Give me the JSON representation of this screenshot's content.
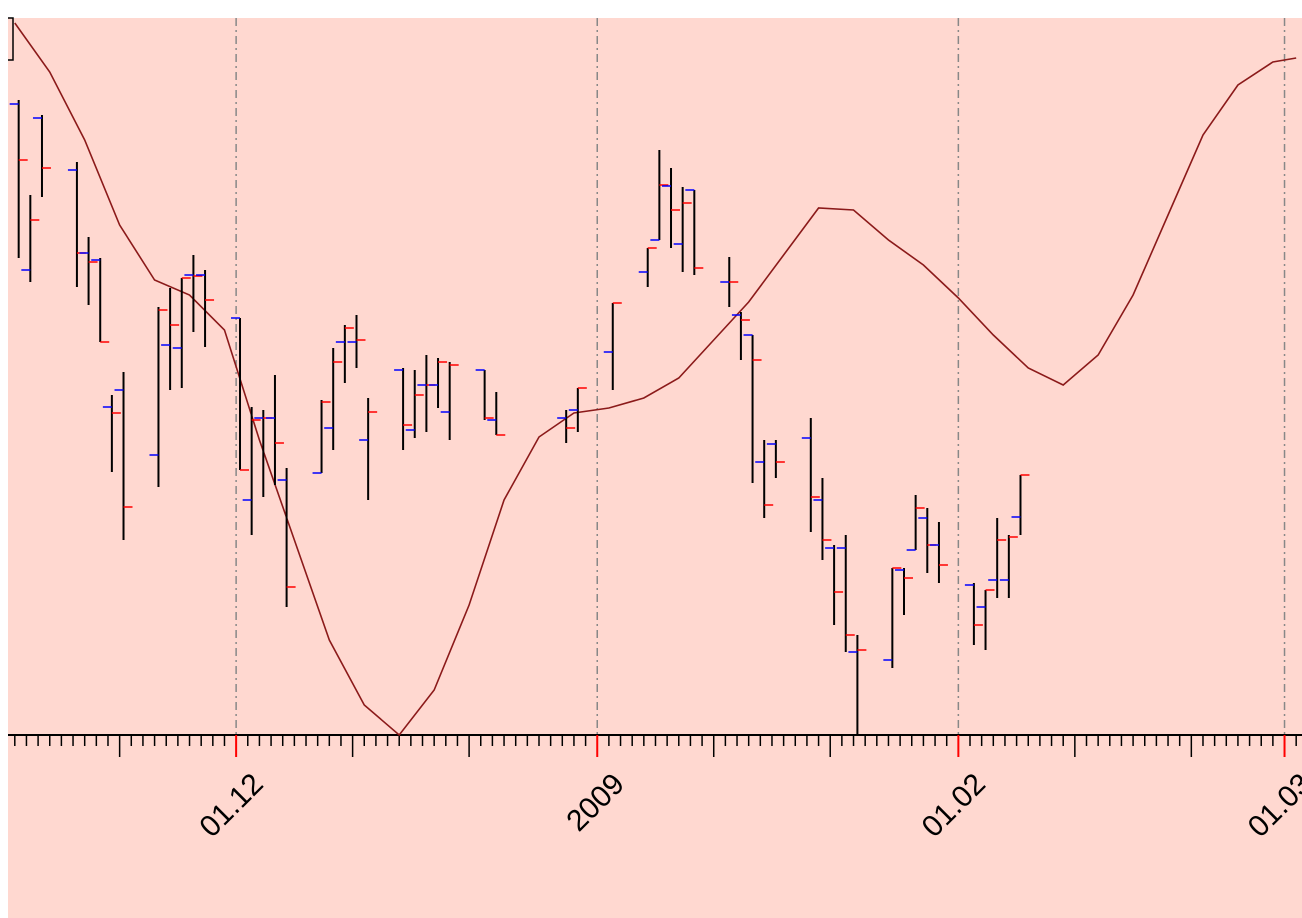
{
  "chart_data": {
    "type": "ohlc",
    "x": [
      "2008-11-12",
      "2008-11-13",
      "2008-11-14",
      "2008-11-17",
      "2008-11-18",
      "2008-11-19",
      "2008-11-20",
      "2008-11-21",
      "2008-11-24",
      "2008-11-25",
      "2008-11-26",
      "2008-11-27",
      "2008-11-28",
      "2008-12-01",
      "2008-12-02",
      "2008-12-03",
      "2008-12-04",
      "2008-12-05",
      "2008-12-08",
      "2008-12-09",
      "2008-12-10",
      "2008-12-11",
      "2008-12-12",
      "2008-12-15",
      "2008-12-16",
      "2008-12-17",
      "2008-12-18",
      "2008-12-19",
      "2008-12-22",
      "2008-12-23",
      "2008-12-29",
      "2008-12-30",
      "2009-01-02",
      "2009-01-05",
      "2009-01-06",
      "2009-01-07",
      "2009-01-08",
      "2009-01-09",
      "2009-01-12",
      "2009-01-13",
      "2009-01-14",
      "2009-01-15",
      "2009-01-16",
      "2009-01-19",
      "2009-01-20",
      "2009-01-21",
      "2009-01-22",
      "2009-01-23",
      "2009-01-26",
      "2009-01-27",
      "2009-01-28",
      "2009-01-29",
      "2009-01-30",
      "2009-02-02",
      "2009-02-03",
      "2009-02-04",
      "2009-02-05",
      "2009-02-06"
    ],
    "open": [
      631,
      465,
      617,
      565,
      482,
      475,
      328,
      345,
      280,
      390,
      387,
      460,
      460,
      417,
      235,
      317,
      317,
      255,
      262,
      307,
      393,
      393,
      295,
      365,
      305,
      350,
      350,
      323,
      365,
      315,
      317,
      325,
      383,
      463,
      495,
      549,
      491,
      545,
      453,
      420,
      400,
      273,
      291,
      297,
      235,
      187,
      187,
      83,
      75,
      165,
      185,
      217,
      190,
      150,
      128,
      155,
      155,
      218
    ],
    "high": [
      635,
      540,
      620,
      573,
      498,
      477,
      340,
      363,
      428,
      447,
      457,
      480,
      465,
      417,
      328,
      325,
      360,
      267,
      335,
      387,
      410,
      420,
      337,
      367,
      365,
      380,
      377,
      373,
      365,
      343,
      325,
      347,
      432,
      487,
      585,
      567,
      548,
      545,
      478,
      423,
      400,
      295,
      295,
      317,
      257,
      190,
      200,
      100,
      167,
      167,
      240,
      227,
      213,
      152,
      145,
      217,
      200,
      260
    ],
    "low": [
      477,
      453,
      538,
      448,
      430,
      393,
      263,
      195,
      248,
      345,
      347,
      403,
      388,
      265,
      200,
      238,
      250,
      128,
      262,
      285,
      352,
      367,
      235,
      285,
      297,
      303,
      327,
      295,
      315,
      300,
      292,
      303,
      345,
      448,
      495,
      487,
      463,
      460,
      428,
      375,
      252,
      217,
      257,
      203,
      175,
      110,
      83,
      0,
      67,
      120,
      185,
      162,
      152,
      90,
      85,
      137,
      137,
      200
    ],
    "close": [
      575,
      515,
      567,
      482,
      473,
      393,
      322,
      228,
      425,
      410,
      457,
      459,
      435,
      265,
      315,
      317,
      292,
      148,
      333,
      373,
      407,
      395,
      323,
      310,
      340,
      350,
      373,
      370,
      317,
      300,
      307,
      347,
      432,
      487,
      550,
      525,
      532,
      467,
      453,
      415,
      375,
      230,
      273,
      238,
      195,
      143,
      100,
      85,
      167,
      157,
      227,
      190,
      170,
      110,
      145,
      195,
      198,
      260
    ],
    "open_color": "#0000ff",
    "close_color": "#ff0000",
    "bar_color": "#000000",
    "overlay": {
      "type": "line",
      "color": "#8b1a1a",
      "x": [
        "2008-11-12",
        "2008-11-15",
        "2008-11-18",
        "2008-11-21",
        "2008-11-24",
        "2008-11-27",
        "2008-11-30",
        "2008-12-03",
        "2008-12-06",
        "2008-12-09",
        "2008-12-12",
        "2008-12-15",
        "2008-12-18",
        "2008-12-21",
        "2008-12-24",
        "2008-12-27",
        "2008-12-30",
        "2009-01-02",
        "2009-01-05",
        "2009-01-08",
        "2009-01-11",
        "2009-01-14",
        "2009-01-17",
        "2009-01-20",
        "2009-01-23",
        "2009-01-26",
        "2009-01-29",
        "2009-02-01",
        "2009-02-04",
        "2009-02-07",
        "2009-02-10",
        "2009-02-13",
        "2009-02-16",
        "2009-02-19",
        "2009-02-22",
        "2009-02-25",
        "2009-02-28",
        "2009-03-02"
      ],
      "values": [
        712,
        663,
        595,
        510,
        455,
        440,
        405,
        295,
        195,
        95,
        30,
        0,
        45,
        130,
        235,
        298,
        322,
        327,
        337,
        357,
        395,
        433,
        480,
        527,
        525,
        495,
        470,
        437,
        400,
        367,
        350,
        380,
        440,
        520,
        600,
        650,
        673,
        677
      ]
    },
    "xlim": [
      "2008-11-11T10:00",
      "2009-03-02T12:00"
    ],
    "ylim": [
      0,
      717
    ],
    "xticks": [
      {
        "value": "2008-12-01",
        "label": "01.12"
      },
      {
        "value": "2009-01-01",
        "label": "2009"
      },
      {
        "value": "2009-02-01",
        "label": "01.02"
      },
      {
        "value": "2009-03-01",
        "label": "01.03"
      }
    ],
    "grid": true
  }
}
